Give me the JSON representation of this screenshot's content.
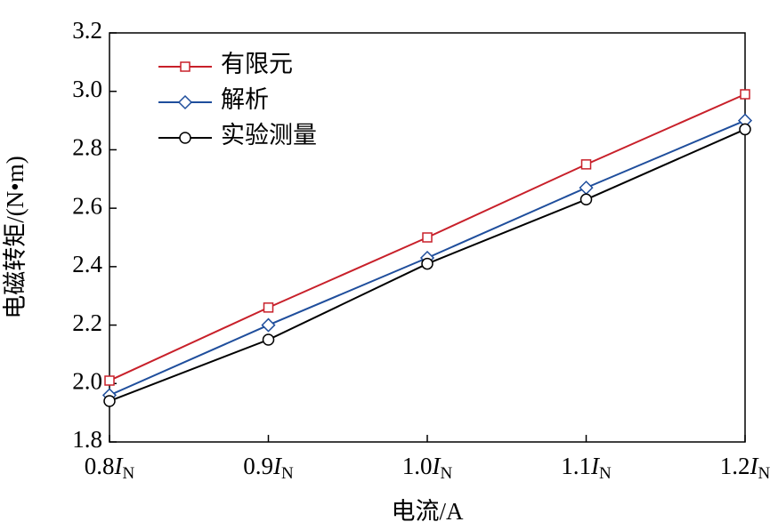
{
  "chart_data": {
    "type": "line",
    "categories": [
      "0.8IN",
      "0.9IN",
      "1.0IN",
      "1.1IN",
      "1.2IN"
    ],
    "series": [
      {
        "name": "有限元",
        "color": "#c8202a",
        "marker": "square",
        "values": [
          2.01,
          2.26,
          2.5,
          2.75,
          2.99
        ]
      },
      {
        "name": "解析",
        "color": "#1f4e9c",
        "marker": "diamond",
        "values": [
          1.96,
          2.2,
          2.43,
          2.67,
          2.9
        ]
      },
      {
        "name": "实验测量",
        "color": "#000000",
        "marker": "circle",
        "values": [
          1.94,
          2.15,
          2.41,
          2.63,
          2.87
        ]
      }
    ],
    "xlabel": "电流/A",
    "ylabel": "电磁转矩/(N•m)",
    "ylim": [
      1.8,
      3.2
    ],
    "yticks": [
      {
        "value": 1.8,
        "label": "1.8"
      },
      {
        "value": 2.0,
        "label": "2.0"
      },
      {
        "value": 2.2,
        "label": "2.2"
      },
      {
        "value": 2.4,
        "label": "2.4"
      },
      {
        "value": 2.6,
        "label": "2.6"
      },
      {
        "value": 2.8,
        "label": "2.8"
      },
      {
        "value": 3.0,
        "label": "3.0"
      },
      {
        "value": 3.2,
        "label": "3.2"
      }
    ],
    "legend": "upper-left",
    "grid": false
  }
}
